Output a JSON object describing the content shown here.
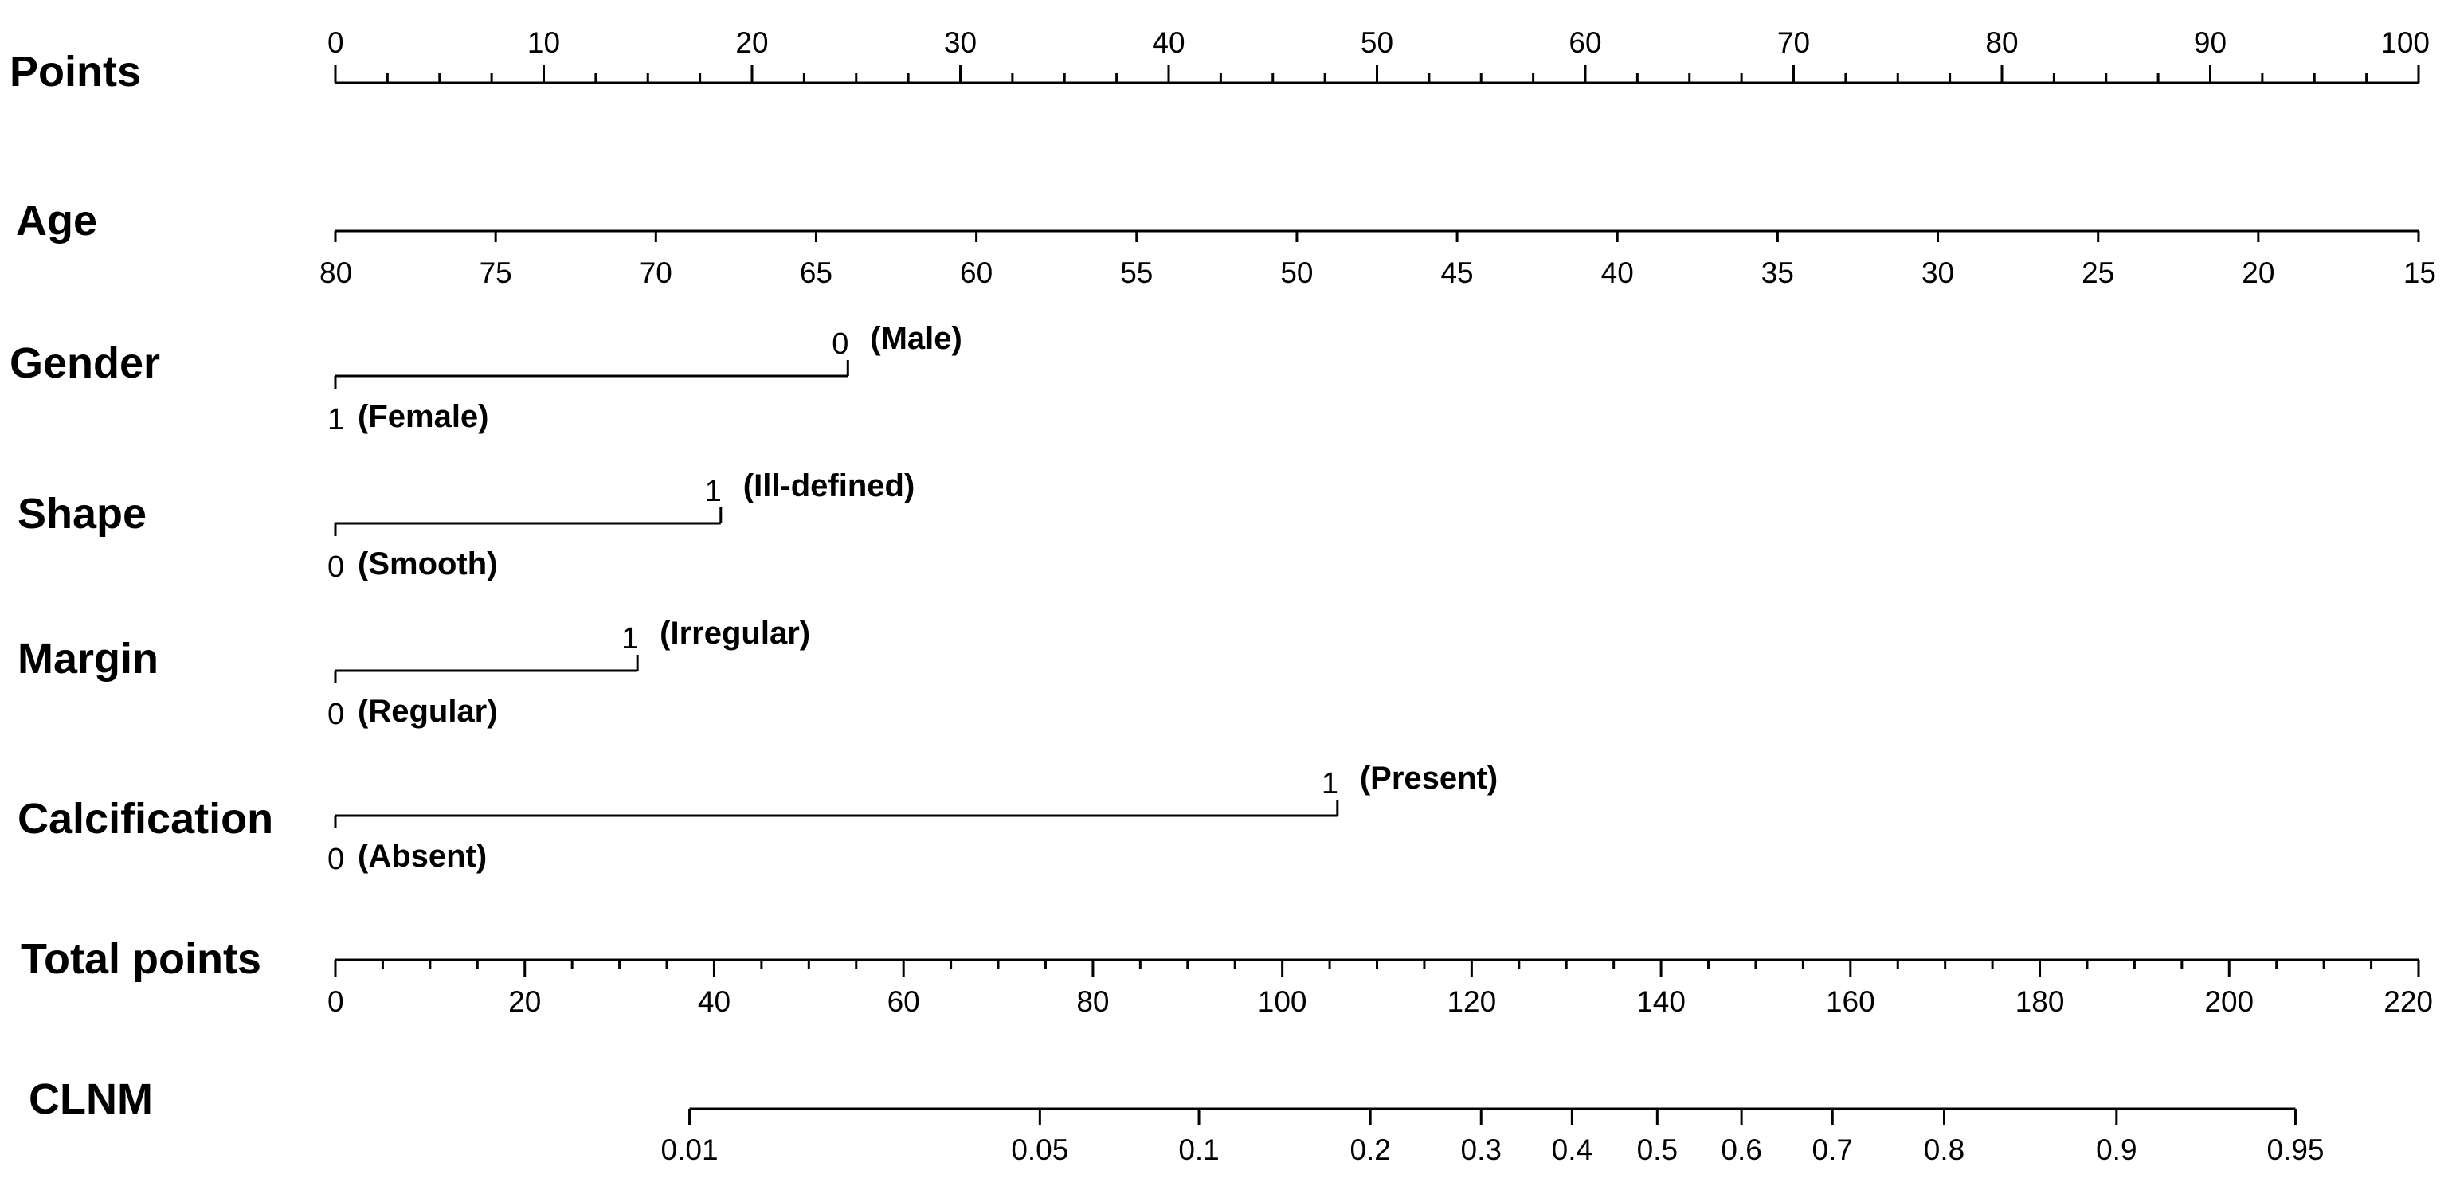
{
  "chart_data": {
    "type": "nomogram",
    "points_scale": {
      "label": "Points",
      "range": [
        0,
        100
      ],
      "tick_labels": [
        "0",
        "10",
        "20",
        "30",
        "40",
        "50",
        "60",
        "70",
        "80",
        "90",
        "100"
      ],
      "tick_values": [
        0,
        10,
        20,
        30,
        40,
        50,
        60,
        70,
        80,
        90,
        100
      ],
      "minor_step": 2.5
    },
    "variables": [
      {
        "kind": "continuous",
        "label": "Age",
        "tick_labels": [
          "80",
          "75",
          "70",
          "65",
          "60",
          "55",
          "50",
          "45",
          "40",
          "35",
          "30",
          "25",
          "20",
          "15"
        ],
        "tick_values": [
          80,
          75,
          70,
          65,
          60,
          55,
          50,
          45,
          40,
          35,
          30,
          25,
          20,
          15
        ],
        "points_range": [
          0,
          100
        ]
      },
      {
        "kind": "categorical",
        "label": "Gender",
        "levels": [
          {
            "code": "1",
            "name": "(Female)",
            "points": 0
          },
          {
            "code": "0",
            "name": "(Male)",
            "points": 24.6
          }
        ]
      },
      {
        "kind": "categorical",
        "label": "Shape",
        "levels": [
          {
            "code": "0",
            "name": "(Smooth)",
            "points": 0
          },
          {
            "code": "1",
            "name": "(Ill-defined)",
            "points": 18.5
          }
        ]
      },
      {
        "kind": "categorical",
        "label": "Margin",
        "levels": [
          {
            "code": "0",
            "name": "(Regular)",
            "points": 0
          },
          {
            "code": "1",
            "name": "(Irregular)",
            "points": 14.5
          }
        ]
      },
      {
        "kind": "categorical",
        "label": "Calcification",
        "levels": [
          {
            "code": "0",
            "name": "(Absent)",
            "points": 0
          },
          {
            "code": "1",
            "name": "(Present)",
            "points": 48.1
          }
        ]
      }
    ],
    "total_points": {
      "label": "Total points",
      "range": [
        0,
        220
      ],
      "tick_labels": [
        "0",
        "20",
        "40",
        "60",
        "80",
        "100",
        "120",
        "140",
        "160",
        "180",
        "200",
        "220"
      ],
      "tick_values": [
        0,
        20,
        40,
        60,
        80,
        100,
        120,
        140,
        160,
        180,
        200,
        220
      ],
      "minor_step": 5
    },
    "outcome": {
      "label": "CLNM",
      "tick_labels": [
        "0.01",
        "0.05",
        "0.1",
        "0.2",
        "0.3",
        "0.4",
        "0.5",
        "0.6",
        "0.7",
        "0.8",
        "0.9",
        "0.95"
      ],
      "tick_values": [
        0.01,
        0.05,
        0.1,
        0.2,
        0.3,
        0.4,
        0.5,
        0.6,
        0.7,
        0.8,
        0.9,
        0.95
      ],
      "total_points_at_ticks": [
        37.4,
        74.4,
        91.2,
        109.3,
        121.0,
        130.6,
        139.6,
        148.5,
        158.1,
        169.9,
        188.1,
        207.0
      ]
    }
  }
}
